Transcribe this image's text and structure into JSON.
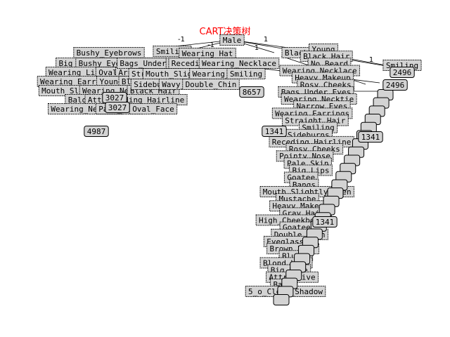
{
  "title": "CART决策树",
  "title_color": "#ff0000",
  "node_fill": "#d3d3d3",
  "root": "Male",
  "branch_labels": [
    "-1",
    "1",
    "-1",
    "1",
    "1"
  ],
  "top_row": [
    "Bushy_Eyebrows",
    "Smiling",
    "Wearing_Hat",
    "Black_Hair",
    "Smiling"
  ],
  "left_cluster": [
    "Big_Nose",
    "Bushy_Eyebrows",
    "Big_Lips",
    "Wearing_Lipstick",
    "Oval_Face",
    "Arched_Eyebrows",
    "Wearing_Earrings",
    "Young",
    "Blond_Hair",
    "Mouth_Slightly_Open",
    "Wearing_Necklace",
    "Black_Hair",
    "Bald",
    "Attractive",
    "Receding_Hairline",
    "Wearing_Necktie",
    "Pale_Skin",
    "Oval_Face"
  ],
  "middle_cluster": [
    "Bags_Under_Eyes",
    "Blurry",
    "Receding_Hairline",
    "Wearing_Necklace",
    "Straight_Hair",
    "Mouth_Slightly_Open",
    "Wearing_Hat",
    "Smiling",
    "Sideburns",
    "Wavy_Hair",
    "Double_Chin"
  ],
  "diagonal_labels": [
    "Young",
    "Black_Hair",
    "No_Beard",
    "Wearing_Necklace",
    "Heavy_Makeup",
    "Rosy_Cheeks",
    "Bags_Under_Eyes",
    "Wearing_Necktie",
    "Narrow_Eyes",
    "Wearing_Earrings",
    "Straight_Hair",
    "Smiling",
    "Sideburns",
    "Receding_Hairline",
    "Rosy_Cheeks",
    "Pointy_Nose",
    "Pale_Skin",
    "Big_Lips",
    "Goatee",
    "Bangs",
    "Mouth_Slightly_Open",
    "Mustache",
    "Heavy_Makeup",
    "Gray_Hair",
    "High_Cheekbones",
    "Goatee",
    "Double_Chin",
    "Eyeglasses",
    "Brown_Hair",
    "Blurry",
    "Blond_Hair",
    "Big_Nose",
    "Attractive",
    "Bald",
    "5_o_Clock_Shadow"
  ],
  "leaf_values": [
    "2496",
    "2496",
    "8657",
    "1341",
    "1341",
    "1341",
    "4987",
    "3027",
    "3027"
  ]
}
